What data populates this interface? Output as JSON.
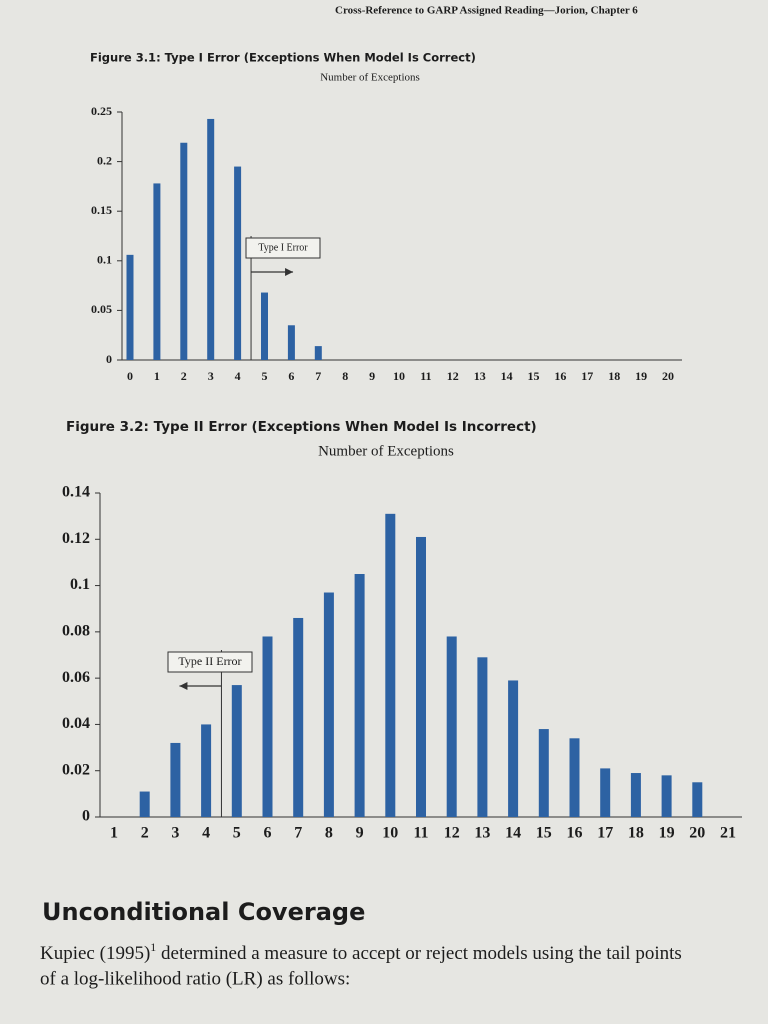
{
  "header": "Cross-Reference to GARP Assigned Reading—Jorion, Chapter 6",
  "chart_data": [
    {
      "type": "bar",
      "title": "Figure 3.1: Type I Error (Exceptions When Model Is Correct)",
      "subtitle": "Number of Exceptions",
      "categories": [
        "0",
        "1",
        "2",
        "3",
        "4",
        "5",
        "6",
        "7",
        "8",
        "9",
        "10",
        "11",
        "12",
        "13",
        "14",
        "15",
        "16",
        "17",
        "18",
        "19",
        "20"
      ],
      "values": [
        0.106,
        0.178,
        0.219,
        0.243,
        0.195,
        0.068,
        0.035,
        0.014,
        0,
        0,
        0,
        0,
        0,
        0,
        0,
        0,
        0,
        0,
        0,
        0,
        0
      ],
      "color": "#2d62a3",
      "ylim": [
        0,
        0.25
      ],
      "yticks": [
        0,
        0.05,
        0.1,
        0.15,
        0.2,
        0.25
      ],
      "annotation": "Type I Error"
    },
    {
      "type": "bar",
      "title": "Figure 3.2: Type II Error (Exceptions When Model Is Incorrect)",
      "subtitle": "Number of Exceptions",
      "categories": [
        "1",
        "2",
        "3",
        "4",
        "5",
        "6",
        "7",
        "8",
        "9",
        "10",
        "11",
        "12",
        "13",
        "14",
        "15",
        "16",
        "17",
        "18",
        "19",
        "20",
        "21"
      ],
      "values": [
        0,
        0.011,
        0.032,
        0.04,
        0.057,
        0.078,
        0.086,
        0.097,
        0.105,
        0.131,
        0.121,
        0.078,
        0.069,
        0.059,
        0.038,
        0.034,
        0.021,
        0.019,
        0.018,
        0.015,
        0
      ],
      "color": "#2d62a3",
      "ylim": [
        0,
        0.14
      ],
      "yticks": [
        0,
        0.02,
        0.04,
        0.06,
        0.08,
        0.1,
        0.12,
        0.14
      ],
      "annotation": "Type II Error"
    }
  ],
  "section": {
    "heading": "Unconditional Coverage",
    "paragraph": [
      "Kupiec (1995)",
      "1",
      " determined a measure to accept or reject models using the tail points",
      "of a log-likelihood ratio (LR) as follows:"
    ]
  }
}
